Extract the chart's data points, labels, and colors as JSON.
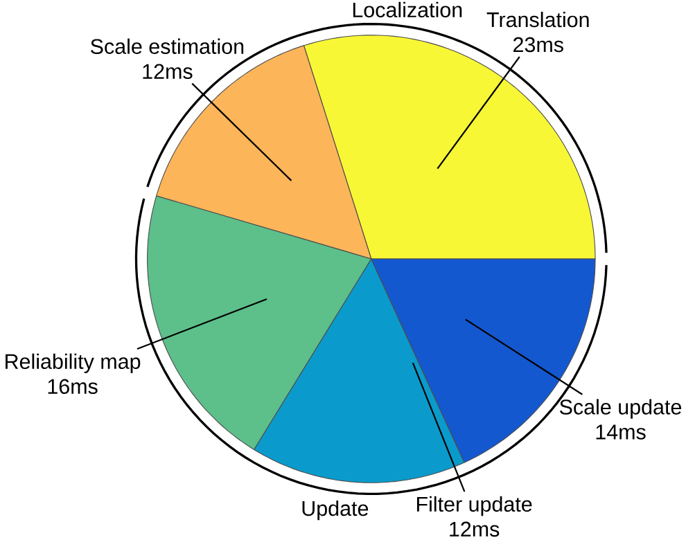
{
  "chart_data": {
    "type": "pie",
    "categories": [
      "Translation",
      "Scale estimation",
      "Reliability map",
      "Filter update",
      "Scale update"
    ],
    "values": [
      23,
      12,
      16,
      12,
      14
    ],
    "value_labels": [
      "23ms",
      "12ms",
      "16ms",
      "12ms",
      "14ms"
    ],
    "colors": [
      "#f7f735",
      "#fdb55a",
      "#5dbf8a",
      "#0a9bcc",
      "#1458d0"
    ],
    "annotations": [
      "Localization",
      "Update"
    ]
  }
}
